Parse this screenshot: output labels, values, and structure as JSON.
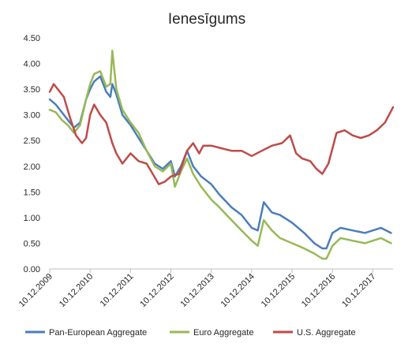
{
  "chart_data": {
    "type": "line",
    "title": "Ienesīgums",
    "xlabel": "",
    "ylabel": "",
    "y_ticks": [
      "0.00",
      "0.50",
      "1.00",
      "1.50",
      "2.00",
      "2.50",
      "3.00",
      "3.50",
      "4.00",
      "4.50"
    ],
    "ylim": [
      0,
      4.5
    ],
    "x_ticks": [
      "10.12.2009",
      "10.12.2010",
      "10.12.2011",
      "10.12.2012",
      "10.12.2013",
      "10.12.2014",
      "10.12.2015",
      "10.12.2016",
      "10.12.2017"
    ],
    "x_tick_values": [
      0,
      1,
      2,
      3,
      4,
      5,
      6,
      7,
      8
    ],
    "xlim": [
      0,
      8.5
    ],
    "grid": false,
    "legend_position": "bottom",
    "series": [
      {
        "name": "Pan-European Aggregate",
        "color": "#4a7ebb",
        "x": [
          0,
          0.15,
          0.3,
          0.45,
          0.6,
          0.75,
          0.9,
          1.0,
          1.1,
          1.25,
          1.4,
          1.5,
          1.55,
          1.65,
          1.8,
          2.0,
          2.2,
          2.4,
          2.6,
          2.8,
          3.0,
          3.1,
          3.25,
          3.4,
          3.55,
          3.75,
          4.0,
          4.2,
          4.5,
          4.75,
          5.0,
          5.15,
          5.3,
          5.5,
          5.7,
          6.0,
          6.3,
          6.55,
          6.75,
          6.85,
          7.0,
          7.2,
          7.5,
          7.8,
          8.0,
          8.2,
          8.45
        ],
        "y": [
          3.3,
          3.2,
          3.05,
          2.9,
          2.75,
          2.85,
          3.3,
          3.5,
          3.65,
          3.75,
          3.45,
          3.35,
          3.6,
          3.4,
          3.0,
          2.8,
          2.55,
          2.3,
          2.05,
          1.95,
          2.1,
          1.8,
          2.0,
          2.3,
          2.0,
          1.8,
          1.65,
          1.45,
          1.2,
          1.05,
          0.8,
          0.75,
          1.3,
          1.1,
          1.05,
          0.9,
          0.7,
          0.5,
          0.4,
          0.4,
          0.7,
          0.8,
          0.75,
          0.7,
          0.75,
          0.8,
          0.7
        ]
      },
      {
        "name": "Euro Aggregate",
        "color": "#98b954",
        "x": [
          0,
          0.15,
          0.3,
          0.45,
          0.6,
          0.75,
          0.9,
          1.0,
          1.1,
          1.25,
          1.4,
          1.5,
          1.55,
          1.65,
          1.8,
          2.0,
          2.2,
          2.4,
          2.6,
          2.8,
          3.0,
          3.1,
          3.25,
          3.4,
          3.55,
          3.75,
          4.0,
          4.2,
          4.5,
          4.75,
          5.0,
          5.15,
          5.3,
          5.5,
          5.7,
          6.0,
          6.3,
          6.55,
          6.75,
          6.85,
          7.0,
          7.2,
          7.5,
          7.8,
          8.0,
          8.2,
          8.45
        ],
        "y": [
          3.1,
          3.05,
          2.9,
          2.8,
          2.65,
          2.8,
          3.3,
          3.6,
          3.8,
          3.85,
          3.55,
          3.6,
          4.25,
          3.5,
          3.1,
          2.85,
          2.65,
          2.3,
          2.0,
          1.9,
          2.05,
          1.6,
          1.9,
          2.15,
          1.85,
          1.6,
          1.35,
          1.2,
          0.95,
          0.75,
          0.55,
          0.45,
          0.95,
          0.75,
          0.6,
          0.5,
          0.4,
          0.3,
          0.2,
          0.2,
          0.45,
          0.6,
          0.55,
          0.5,
          0.55,
          0.6,
          0.5
        ]
      },
      {
        "name": "U.S. Aggregate",
        "color": "#be4b48",
        "x": [
          0,
          0.1,
          0.2,
          0.35,
          0.5,
          0.65,
          0.8,
          0.9,
          1.0,
          1.1,
          1.25,
          1.4,
          1.55,
          1.65,
          1.8,
          2.0,
          2.2,
          2.4,
          2.55,
          2.7,
          2.85,
          3.0,
          3.2,
          3.4,
          3.55,
          3.7,
          3.8,
          4.0,
          4.25,
          4.5,
          4.75,
          5.0,
          5.25,
          5.5,
          5.75,
          5.95,
          6.1,
          6.25,
          6.45,
          6.6,
          6.75,
          6.9,
          7.1,
          7.3,
          7.5,
          7.7,
          7.9,
          8.1,
          8.3,
          8.5
        ],
        "y": [
          3.45,
          3.6,
          3.5,
          3.35,
          2.95,
          2.6,
          2.45,
          2.55,
          3.0,
          3.2,
          3.0,
          2.85,
          2.45,
          2.25,
          2.05,
          2.25,
          2.1,
          2.05,
          1.85,
          1.65,
          1.7,
          1.8,
          1.85,
          2.3,
          2.45,
          2.25,
          2.4,
          2.4,
          2.35,
          2.3,
          2.3,
          2.2,
          2.3,
          2.4,
          2.45,
          2.6,
          2.25,
          2.15,
          2.1,
          1.95,
          1.85,
          2.05,
          2.65,
          2.7,
          2.6,
          2.55,
          2.6,
          2.7,
          2.85,
          3.15
        ]
      }
    ]
  }
}
